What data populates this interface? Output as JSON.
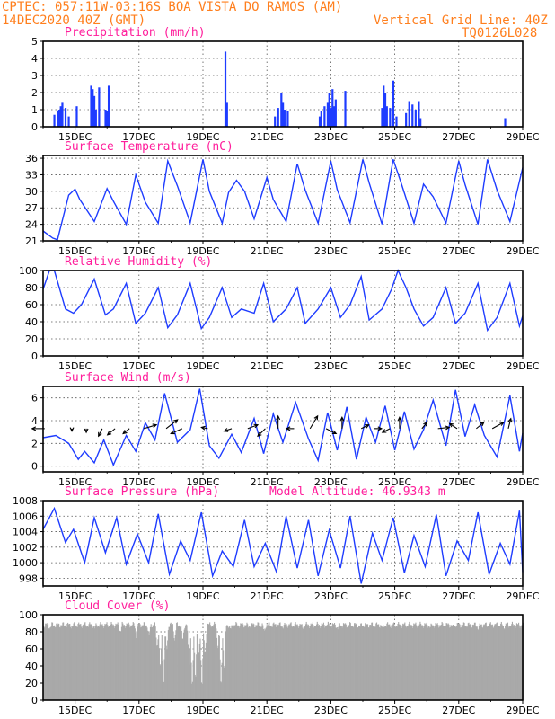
{
  "header": {
    "line1": "CPTEC:  057:11W-03:16S  BOA VISTA DO RAMOS (AM)",
    "line2_left": "14DEC2020 40Z (GMT)",
    "line2_right": "Vertical Grid Line: 40Z",
    "code": "TQ0126L028"
  },
  "x_axis": {
    "range_days": [
      14.0,
      29.0
    ],
    "ticks": [
      {
        "label": "15DEC",
        "day": 15
      },
      {
        "label": "17DEC",
        "day": 17
      },
      {
        "label": "19DEC",
        "day": 19
      },
      {
        "label": "21DEC",
        "day": 21
      },
      {
        "label": "23DEC",
        "day": 23
      },
      {
        "label": "25DEC",
        "day": 25
      },
      {
        "label": "27DEC",
        "day": 27
      },
      {
        "label": "29DEC",
        "day": 29
      }
    ]
  },
  "chart_data": [
    {
      "type": "bar",
      "title": "Precipitation (mm/h)",
      "ylim": [
        0,
        5
      ],
      "yticks": [
        "0",
        "1",
        "2",
        "3",
        "4",
        "5"
      ],
      "color": "#1e3cff",
      "bars_day_value": [
        [
          14.35,
          0.7
        ],
        [
          14.45,
          0.9
        ],
        [
          14.5,
          1.0
        ],
        [
          14.55,
          1.2
        ],
        [
          14.6,
          1.4
        ],
        [
          14.7,
          1.1
        ],
        [
          14.8,
          0.6
        ],
        [
          15.05,
          1.2
        ],
        [
          15.5,
          2.4
        ],
        [
          15.55,
          2.2
        ],
        [
          15.6,
          1.8
        ],
        [
          15.65,
          1.0
        ],
        [
          15.75,
          2.3
        ],
        [
          15.95,
          1.0
        ],
        [
          16.0,
          0.9
        ],
        [
          16.05,
          2.4
        ],
        [
          19.7,
          4.4
        ],
        [
          19.75,
          1.4
        ],
        [
          21.25,
          0.6
        ],
        [
          21.35,
          1.1
        ],
        [
          21.45,
          2.0
        ],
        [
          21.5,
          1.4
        ],
        [
          21.55,
          1.0
        ],
        [
          21.65,
          0.9
        ],
        [
          22.65,
          0.6
        ],
        [
          22.7,
          0.9
        ],
        [
          22.8,
          1.2
        ],
        [
          22.9,
          1.4
        ],
        [
          22.95,
          2.0
        ],
        [
          23.0,
          1.1
        ],
        [
          23.05,
          2.2
        ],
        [
          23.1,
          1.2
        ],
        [
          23.15,
          1.6
        ],
        [
          23.45,
          2.1
        ],
        [
          24.6,
          1.1
        ],
        [
          24.65,
          2.4
        ],
        [
          24.7,
          2.0
        ],
        [
          24.75,
          1.2
        ],
        [
          24.85,
          1.1
        ],
        [
          24.95,
          2.7
        ],
        [
          25.05,
          0.6
        ],
        [
          25.35,
          0.8
        ],
        [
          25.45,
          1.5
        ],
        [
          25.55,
          1.3
        ],
        [
          25.65,
          1.0
        ],
        [
          25.75,
          1.5
        ],
        [
          25.8,
          0.5
        ],
        [
          28.45,
          0.5
        ]
      ]
    },
    {
      "type": "line",
      "title": "Surface Temperature (nC)",
      "ylim": [
        21,
        36.5
      ],
      "yticks": [
        "21",
        "24",
        "27",
        "30",
        "33",
        "36"
      ],
      "x": [
        14.0,
        14.3,
        14.45,
        14.8,
        15.0,
        15.15,
        15.6,
        16.0,
        16.2,
        16.6,
        16.9,
        17.2,
        17.6,
        17.9,
        18.2,
        18.6,
        19.0,
        19.2,
        19.6,
        19.8,
        20.05,
        20.3,
        20.6,
        21.0,
        21.2,
        21.6,
        21.95,
        22.2,
        22.6,
        23.0,
        23.2,
        23.6,
        24.0,
        24.2,
        24.6,
        24.95,
        25.2,
        25.6,
        25.9,
        26.2,
        26.6,
        27.0,
        27.2,
        27.6,
        27.9,
        28.2,
        28.6,
        29.0
      ],
      "y": [
        22.8,
        21.5,
        21.2,
        29.3,
        30.4,
        28.5,
        24.5,
        30.5,
        28.2,
        24.0,
        33.0,
        28.0,
        24.2,
        35.5,
        31.0,
        24.3,
        35.8,
        30.0,
        24.2,
        29.8,
        32.0,
        30.0,
        25.0,
        32.5,
        28.5,
        24.5,
        35.0,
        30.2,
        24.2,
        35.5,
        30.3,
        24.3,
        35.8,
        31.5,
        24.0,
        35.8,
        31.5,
        24.2,
        31.3,
        29.0,
        24.2,
        35.5,
        31.2,
        24.0,
        35.8,
        30.2,
        24.5,
        34.3
      ]
    },
    {
      "type": "line",
      "title": "Relative Humidity (%)",
      "ylim": [
        0,
        100
      ],
      "yticks": [
        "0",
        "20",
        "40",
        "60",
        "80",
        "100"
      ],
      "x": [
        14.0,
        14.2,
        14.35,
        14.7,
        14.95,
        15.2,
        15.6,
        15.95,
        16.2,
        16.6,
        16.9,
        17.2,
        17.6,
        17.9,
        18.2,
        18.6,
        18.95,
        19.2,
        19.6,
        19.9,
        20.2,
        20.6,
        20.9,
        21.2,
        21.6,
        21.95,
        22.2,
        22.6,
        23.0,
        23.3,
        23.6,
        23.95,
        24.2,
        24.6,
        24.9,
        25.1,
        25.35,
        25.6,
        25.9,
        26.2,
        26.6,
        26.9,
        27.2,
        27.6,
        27.9,
        28.2,
        28.6,
        28.9,
        29.0
      ],
      "y": [
        78,
        100,
        100,
        55,
        50,
        60,
        90,
        48,
        55,
        85,
        38,
        50,
        80,
        33,
        48,
        85,
        32,
        45,
        80,
        45,
        55,
        50,
        85,
        40,
        55,
        80,
        38,
        55,
        80,
        45,
        60,
        93,
        42,
        55,
        78,
        100,
        80,
        55,
        35,
        45,
        80,
        38,
        50,
        85,
        30,
        45,
        85,
        35,
        47
      ]
    },
    {
      "type": "line",
      "title": "Surface Wind (m/s)",
      "ylim": [
        -0.5,
        7
      ],
      "yticks": [
        "0",
        "2",
        "4",
        "6"
      ],
      "x": [
        14.0,
        14.4,
        14.8,
        15.1,
        15.3,
        15.6,
        15.9,
        16.2,
        16.6,
        16.9,
        17.2,
        17.5,
        17.8,
        18.2,
        18.6,
        18.9,
        19.2,
        19.5,
        19.9,
        20.2,
        20.6,
        20.9,
        21.2,
        21.5,
        21.9,
        22.3,
        22.6,
        22.9,
        23.2,
        23.5,
        23.8,
        24.1,
        24.4,
        24.7,
        25.0,
        25.3,
        25.6,
        25.9,
        26.2,
        26.6,
        26.9,
        27.2,
        27.5,
        27.8,
        28.2,
        28.6,
        28.9,
        29.0
      ],
      "y": [
        2.5,
        2.7,
        2.0,
        0.6,
        1.3,
        0.3,
        2.3,
        0.1,
        2.7,
        1.3,
        3.8,
        2.3,
        6.4,
        2.1,
        3.2,
        6.8,
        1.8,
        0.7,
        2.8,
        1.2,
        4.2,
        1.1,
        4.6,
        2.1,
        5.6,
        2.4,
        0.5,
        4.7,
        1.4,
        5.2,
        0.6,
        4.3,
        2.1,
        5.3,
        1.4,
        4.8,
        1.5,
        3.2,
        5.8,
        1.8,
        6.7,
        2.6,
        5.4,
        2.7,
        0.8,
        6.2,
        1.3,
        2.9
      ],
      "arrows": [
        {
          "day": 14.05,
          "u": -1.0,
          "v": 0.0
        },
        {
          "day": 14.9,
          "u": 0.0,
          "v": -0.2
        },
        {
          "day": 15.35,
          "u": 0.0,
          "v": -0.3
        },
        {
          "day": 15.85,
          "u": -0.3,
          "v": -0.6
        },
        {
          "day": 16.25,
          "u": -0.6,
          "v": -0.5
        },
        {
          "day": 16.7,
          "u": -0.5,
          "v": -0.4
        },
        {
          "day": 17.15,
          "u": 1.0,
          "v": 0.3
        },
        {
          "day": 17.85,
          "u": 0.9,
          "v": 0.7
        },
        {
          "day": 18.35,
          "u": -0.9,
          "v": -0.4
        },
        {
          "day": 19.15,
          "u": -0.5,
          "v": 0.1
        },
        {
          "day": 19.9,
          "u": -0.6,
          "v": -0.2
        },
        {
          "day": 20.4,
          "u": 0.8,
          "v": 0.3
        },
        {
          "day": 20.95,
          "u": -0.6,
          "v": -0.6
        },
        {
          "day": 21.35,
          "u": 0.0,
          "v": 1.0
        },
        {
          "day": 21.85,
          "u": -0.6,
          "v": 0.0
        },
        {
          "day": 22.35,
          "u": 0.6,
          "v": 1.0
        },
        {
          "day": 22.85,
          "u": 0.8,
          "v": -0.4
        },
        {
          "day": 23.35,
          "u": 0.0,
          "v": 0.9
        },
        {
          "day": 23.95,
          "u": 0.6,
          "v": 0.3
        },
        {
          "day": 24.35,
          "u": 0.6,
          "v": 0.0
        },
        {
          "day": 24.85,
          "u": -0.6,
          "v": -0.3
        },
        {
          "day": 25.15,
          "u": 0.0,
          "v": 0.9
        },
        {
          "day": 25.85,
          "u": 0.4,
          "v": 0.5
        },
        {
          "day": 26.35,
          "u": 0.9,
          "v": 0.1
        },
        {
          "day": 26.95,
          "u": -0.6,
          "v": 0.4
        },
        {
          "day": 27.55,
          "u": 0.6,
          "v": 0.5
        },
        {
          "day": 28.05,
          "u": 0.9,
          "v": 0.5
        },
        {
          "day": 28.55,
          "u": 0.2,
          "v": 0.8
        }
      ]
    },
    {
      "type": "line",
      "title": "Surface Pressure (hPa)",
      "annotation": "Model Altitude: 46.9343 m",
      "ylim": [
        997,
        1008
      ],
      "yticks": [
        "998",
        "1000",
        "1002",
        "1004",
        "1006",
        "1008"
      ],
      "x": [
        14.0,
        14.35,
        14.7,
        14.95,
        15.3,
        15.6,
        15.95,
        16.3,
        16.6,
        16.95,
        17.3,
        17.6,
        17.95,
        18.3,
        18.6,
        18.95,
        19.3,
        19.6,
        19.95,
        20.3,
        20.6,
        20.95,
        21.3,
        21.6,
        21.95,
        22.3,
        22.6,
        22.95,
        23.3,
        23.6,
        23.95,
        24.3,
        24.6,
        24.95,
        25.3,
        25.6,
        25.95,
        26.3,
        26.6,
        26.95,
        27.3,
        27.6,
        27.95,
        28.3,
        28.6,
        28.9,
        29.0
      ],
      "y": [
        1004.3,
        1007.0,
        1002.6,
        1004.3,
        1000.0,
        1005.8,
        1001.3,
        1005.8,
        999.8,
        1003.7,
        1000.0,
        1006.3,
        998.5,
        1002.8,
        1000.3,
        1006.5,
        998.3,
        1001.5,
        999.5,
        1005.5,
        999.5,
        1002.5,
        998.8,
        1006.0,
        999.3,
        1005.5,
        998.3,
        1004.2,
        999.3,
        1006.0,
        997.3,
        1003.8,
        1000.3,
        1005.8,
        998.7,
        1003.5,
        999.5,
        1006.2,
        998.3,
        1002.8,
        1000.3,
        1006.5,
        998.5,
        1002.5,
        999.8,
        1006.7,
        998.8
      ]
    },
    {
      "type": "bar",
      "title": "Cloud Cover (%)",
      "ylim": [
        0,
        100
      ],
      "yticks": [
        "0",
        "20",
        "40",
        "60",
        "80",
        "100"
      ],
      "color": "#a9a9a9",
      "baseline": 88,
      "dips_day_value": [
        [
          14.2,
          85
        ],
        [
          14.9,
          86
        ],
        [
          15.6,
          84
        ],
        [
          16.4,
          80
        ],
        [
          16.9,
          76
        ],
        [
          17.3,
          74
        ],
        [
          17.55,
          60
        ],
        [
          17.65,
          30
        ],
        [
          17.75,
          8
        ],
        [
          17.85,
          55
        ],
        [
          18.1,
          70
        ],
        [
          18.35,
          68
        ],
        [
          18.55,
          35
        ],
        [
          18.65,
          4
        ],
        [
          18.75,
          20
        ],
        [
          18.85,
          45
        ],
        [
          18.95,
          8
        ],
        [
          19.05,
          50
        ],
        [
          19.25,
          88
        ],
        [
          19.45,
          60
        ],
        [
          19.55,
          5
        ],
        [
          19.65,
          30
        ],
        [
          19.85,
          82
        ],
        [
          20.4,
          86
        ],
        [
          20.9,
          80
        ],
        [
          21.5,
          86
        ],
        [
          22.1,
          85
        ],
        [
          23.2,
          84
        ],
        [
          23.9,
          86
        ],
        [
          24.6,
          84
        ],
        [
          25.4,
          88
        ],
        [
          26.1,
          85
        ],
        [
          26.8,
          85
        ],
        [
          27.6,
          84
        ],
        [
          28.4,
          86
        ],
        [
          29.0,
          87
        ]
      ]
    }
  ]
}
